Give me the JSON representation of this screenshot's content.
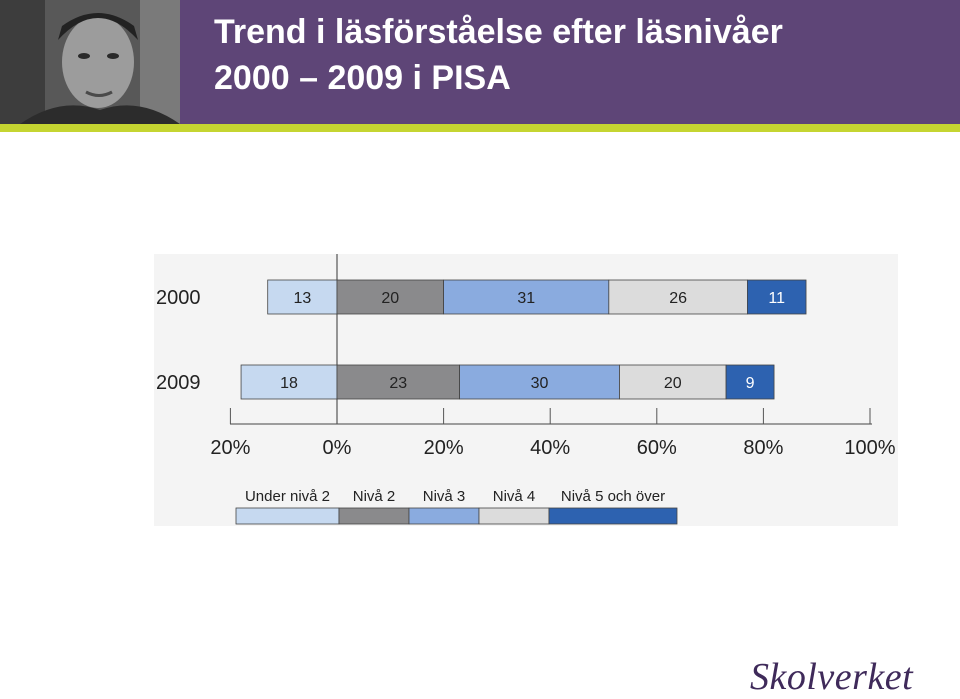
{
  "header": {
    "title_line1": "Trend i läsförståelse efter läsnivåer",
    "title_line2": "2000 – 2009 i PISA",
    "background_color": "#5e4577",
    "accent_color": "#c5d531"
  },
  "logo": {
    "text": "Skolverket"
  },
  "chart_data": {
    "type": "bar",
    "orientation": "horizontal",
    "stacked": "diverging",
    "categories": [
      "2000",
      "2009"
    ],
    "series": [
      {
        "name": "Under nivå 2",
        "values": [
          13,
          18
        ],
        "color": "#c6d9f0",
        "side": "negative"
      },
      {
        "name": "Nivå 2",
        "values": [
          20,
          23
        ],
        "color": "#8a8a8c",
        "side": "positive"
      },
      {
        "name": "Nivå 3",
        "values": [
          31,
          30
        ],
        "color": "#8aabdf",
        "side": "positive"
      },
      {
        "name": "Nivå 4",
        "values": [
          26,
          20
        ],
        "color": "#dcdcdc",
        "side": "positive"
      },
      {
        "name": "Nivå 5 och över",
        "values": [
          11,
          9
        ],
        "color": "#2d62b0",
        "side": "positive"
      }
    ],
    "x_ticks": [
      "20%",
      "0%",
      "20%",
      "40%",
      "60%",
      "80%",
      "100%"
    ],
    "xlim": [
      -20,
      100
    ],
    "legend_position": "bottom",
    "grid": false
  }
}
